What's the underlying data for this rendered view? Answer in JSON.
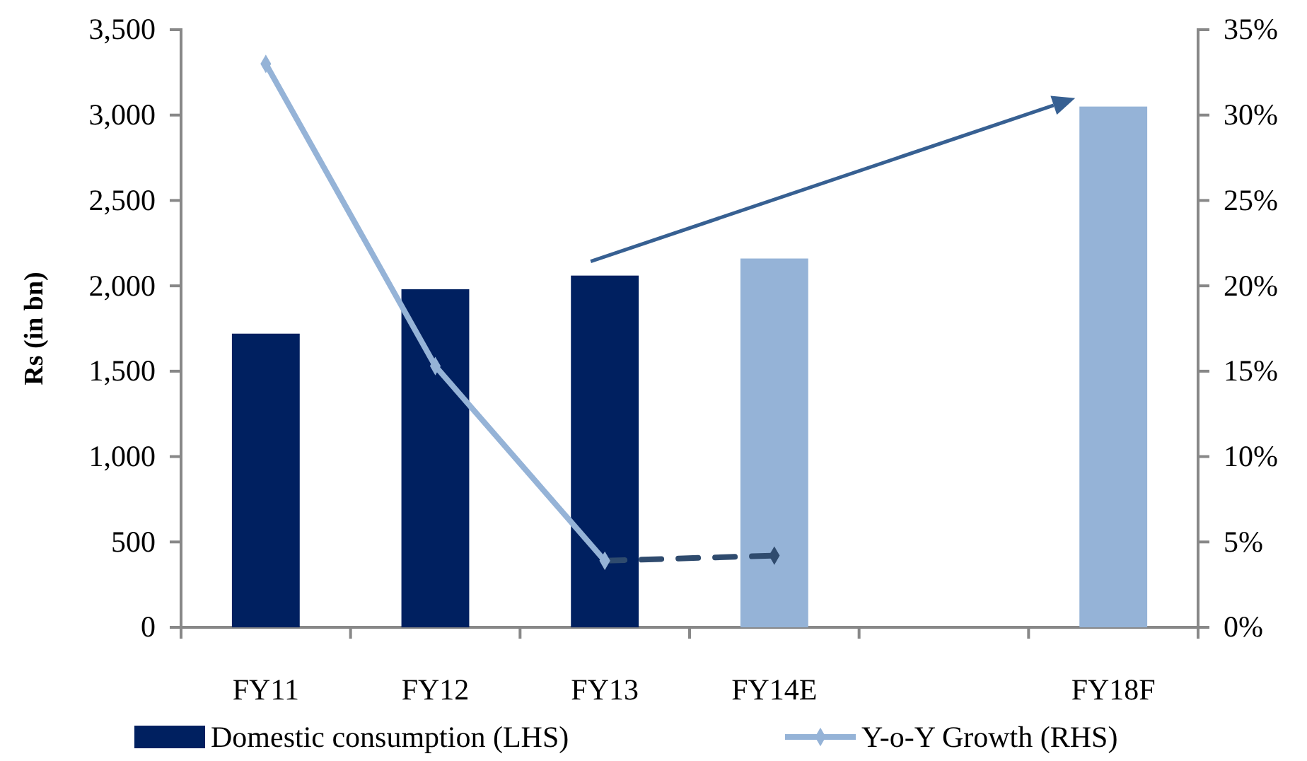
{
  "chart_data": {
    "type": "bar",
    "ylabel": "Rs (in bn)",
    "categories": [
      "FY11",
      "FY12",
      "FY13",
      "FY14E",
      null,
      "FY18F"
    ],
    "series": [
      {
        "name": "Domestic consumption (LHS)",
        "color": "#002060",
        "colors": [
          "#002060",
          "#002060",
          "#002060",
          "#95b3d7",
          null,
          "#95b3d7"
        ],
        "values": [
          1720,
          1980,
          2060,
          2160,
          null,
          3050
        ]
      },
      {
        "name": "Y-o-Y Growth (RHS)",
        "type": "line",
        "axis": "y2",
        "color": "#95b3d7",
        "marker": "diamond",
        "line_style": "solid",
        "values": [
          33,
          15.3,
          3.9,
          null,
          null,
          null
        ]
      },
      {
        "type": "line",
        "axis": "y2",
        "color": "#2f4b6e",
        "marker": "diamond",
        "line_style": "dashed",
        "values": [
          null,
          null,
          3.9,
          4.2,
          null,
          null
        ]
      }
    ],
    "ylim": [
      0,
      3500
    ],
    "yticks": [
      0,
      500,
      {
        "value": 1000,
        "label": "1,000"
      },
      {
        "value": 1500,
        "label": "1,500"
      },
      {
        "value": 2000,
        "label": "2,000"
      },
      {
        "value": 2500,
        "label": "2,500"
      },
      {
        "value": 3000,
        "label": "3,000"
      },
      {
        "value": 3500,
        "label": "3,500"
      }
    ],
    "y2lim": [
      0,
      35
    ],
    "y2ticks": [
      {
        "value": 0,
        "label": "0%"
      },
      {
        "value": 5,
        "label": "5%"
      },
      {
        "value": 10,
        "label": "10%"
      },
      {
        "value": 15,
        "label": "15%"
      },
      {
        "value": 20,
        "label": "20%"
      },
      {
        "value": 25,
        "label": "25%"
      },
      {
        "value": 30,
        "label": "30%"
      },
      {
        "value": 35,
        "label": "35%"
      }
    ],
    "grid": false,
    "legend": "bottom"
  }
}
